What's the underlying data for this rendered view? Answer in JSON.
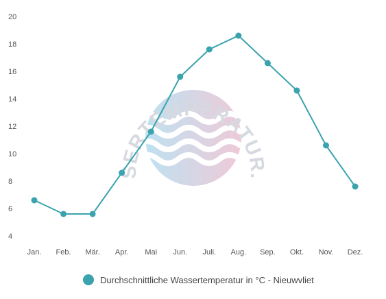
{
  "watermark": {
    "logo_text": "WASSERTEMPERATUR.ORG",
    "icon": "waves-logo-icon"
  },
  "chart_data": {
    "type": "line",
    "categories": [
      "Jan.",
      "Feb.",
      "Mär.",
      "Apr.",
      "Mai",
      "Jun.",
      "Juli.",
      "Aug.",
      "Sep.",
      "Okt.",
      "Nov.",
      "Dez."
    ],
    "series": [
      {
        "name": "Durchschnittliche Wassertemperatur in °C - Nieuwvliet",
        "values": [
          6.6,
          5.6,
          5.6,
          8.6,
          11.6,
          15.6,
          17.6,
          18.6,
          16.6,
          14.6,
          10.6,
          7.6
        ],
        "color": "#3aa3ad"
      }
    ],
    "yticks": [
      4,
      6,
      8,
      10,
      12,
      14,
      16,
      18,
      20
    ],
    "ylim": [
      4,
      20
    ],
    "grid": false,
    "legend": "bottom"
  }
}
